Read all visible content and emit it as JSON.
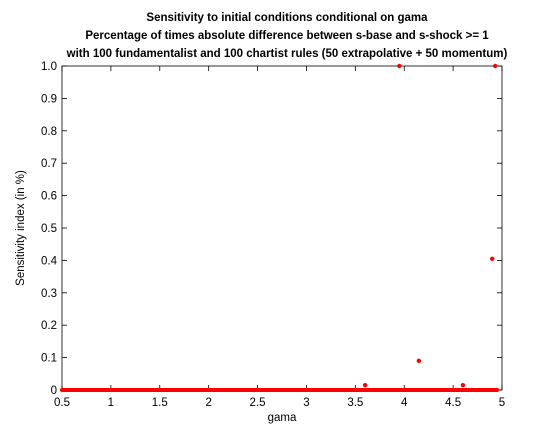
{
  "chart_data": {
    "type": "scatter",
    "title": [
      "Sensitivity to initial conditions conditional on gama",
      "Percentage of times absolute difference between s-base and s-shock >= 1",
      "with 100 fundamentalist and 100 chartist rules (50 extrapolative + 50 momentum)"
    ],
    "xlabel": "gama",
    "ylabel": "Sensitivity index (in %)",
    "xlim": [
      0.5,
      5
    ],
    "ylim": [
      0,
      1
    ],
    "xticks": [
      0.5,
      1,
      1.5,
      2,
      2.5,
      3,
      3.5,
      4,
      4.5,
      5
    ],
    "xtick_labels": [
      "0.5",
      "1",
      "1.5",
      "2",
      "2.5",
      "3",
      "3.5",
      "4",
      "4.5",
      "5"
    ],
    "yticks": [
      0,
      0.1,
      0.2,
      0.3,
      0.4,
      0.5,
      0.6,
      0.7,
      0.8,
      0.9,
      1.0
    ],
    "ytick_labels": [
      "0",
      "0.1",
      "0.2",
      "0.3",
      "0.4",
      "0.5",
      "0.6",
      "0.7",
      "0.8",
      "0.9",
      "1.0"
    ],
    "grid": false,
    "marker_color": "#ff0000",
    "zero_band": {
      "x_from": 0.5,
      "x_to": 4.95,
      "y": 0
    },
    "points": [
      {
        "x": 3.6,
        "y": 0.015
      },
      {
        "x": 3.95,
        "y": 1.0
      },
      {
        "x": 4.15,
        "y": 0.09
      },
      {
        "x": 4.6,
        "y": 0.015
      },
      {
        "x": 4.9,
        "y": 0.405
      },
      {
        "x": 4.93,
        "y": 1.0
      }
    ]
  }
}
